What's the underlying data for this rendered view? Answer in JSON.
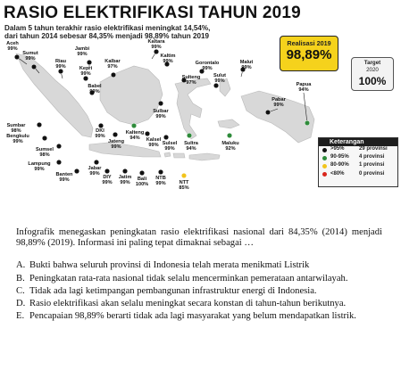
{
  "infographic": {
    "title": "RASIO ELEKTRIFIKASI TAHUN 2019",
    "subtitle_line1": "Dalam 5 tahun terakhir rasio elektrifikasi meningkat 14,54%,",
    "subtitle_line2": "dari tahun 2014 sebesar 84,35% menjadi 98,89% tahun 2019",
    "realisasi": {
      "label": "Realisasi 2019",
      "value": "98,89%"
    },
    "target": {
      "label": "Target",
      "year": "2020",
      "value": "100%"
    },
    "legend": {
      "title": "Keterangan",
      "items": [
        {
          "range": ">95%",
          "count": "29 provinsi",
          "color": "#111111"
        },
        {
          "range": "90-95%",
          "count": "4 provinsi",
          "color": "#2e8b3a"
        },
        {
          "range": "80-90%",
          "count": "1 provinsi",
          "color": "#f2c41b"
        },
        {
          "range": "<80%",
          "count": "0 provinsi",
          "color": "#d9261c"
        }
      ]
    },
    "colors": {
      "land": "#d8d8d8",
      "land_stroke": "#b9b9b9",
      "callout": "#f5d21c"
    },
    "provinces": [
      {
        "name": "Aceh",
        "value": "99%"
      },
      {
        "name": "Sumut",
        "value": "99%"
      },
      {
        "name": "Riau",
        "value": "99%"
      },
      {
        "name": "Jambi",
        "value": "99%"
      },
      {
        "name": "Kepri",
        "value": "99%"
      },
      {
        "name": "Kalbar",
        "value": "97%"
      },
      {
        "name": "Sumbar",
        "value": "98%"
      },
      {
        "name": "Babel",
        "value": "99%"
      },
      {
        "name": "Bengkulu",
        "value": "99%"
      },
      {
        "name": "Sumsel",
        "value": "98%"
      },
      {
        "name": "Lampung",
        "value": "99%"
      },
      {
        "name": "Banten",
        "value": "99%"
      },
      {
        "name": "DKI",
        "value": "99%"
      },
      {
        "name": "Jabar",
        "value": "99%"
      },
      {
        "name": "Jateng",
        "value": "99%"
      },
      {
        "name": "DIY",
        "value": "99%"
      },
      {
        "name": "Jatim",
        "value": "99%"
      },
      {
        "name": "Bali",
        "value": "100%"
      },
      {
        "name": "NTB",
        "value": "99%"
      },
      {
        "name": "NTT",
        "value": "85%"
      },
      {
        "name": "Kalteng",
        "value": "94%"
      },
      {
        "name": "Kalsel",
        "value": "99%"
      },
      {
        "name": "Kaltara",
        "value": "99%"
      },
      {
        "name": "Kaltim",
        "value": "99%"
      },
      {
        "name": "Sulbar",
        "value": "99%"
      },
      {
        "name": "Sulsel",
        "value": "99%"
      },
      {
        "name": "Sultra",
        "value": "94%"
      },
      {
        "name": "Sulteng",
        "value": "97%"
      },
      {
        "name": "Gorontalo",
        "value": "99%"
      },
      {
        "name": "Sulut",
        "value": "99%"
      },
      {
        "name": "Malut",
        "value": "99%"
      },
      {
        "name": "Maluku",
        "value": "92%"
      },
      {
        "name": "Pabar",
        "value": "99%"
      },
      {
        "name": "Papua",
        "value": "94%"
      }
    ]
  },
  "question": {
    "text": "Infografik menegaskan peningkatan rasio elektrifikasi nasional dari 84,35% (2014) menjadi 98,89% (2019). Informasi ini paling tepat dimaknai sebagai …",
    "options": [
      {
        "letter": "A.",
        "text": "Bukti bahwa seluruh provinsi di Indonesia telah merata menikmati Listrik"
      },
      {
        "letter": "B.",
        "text": "Peningkatan rata-rata nasional tidak selalu mencerminkan pemerataan antarwilayah."
      },
      {
        "letter": "C.",
        "text": "Tidak ada lagi ketimpangan pembangunan infrastruktur energi di Indonesia."
      },
      {
        "letter": "D.",
        "text": "Rasio elektrifikasi akan selalu meningkat secara konstan di tahun-tahun berikutnya."
      },
      {
        "letter": "E.",
        "text": "Pencapaian 98,89% berarti tidak ada lagi masyarakat yang belum mendapatkan listrik."
      }
    ]
  }
}
